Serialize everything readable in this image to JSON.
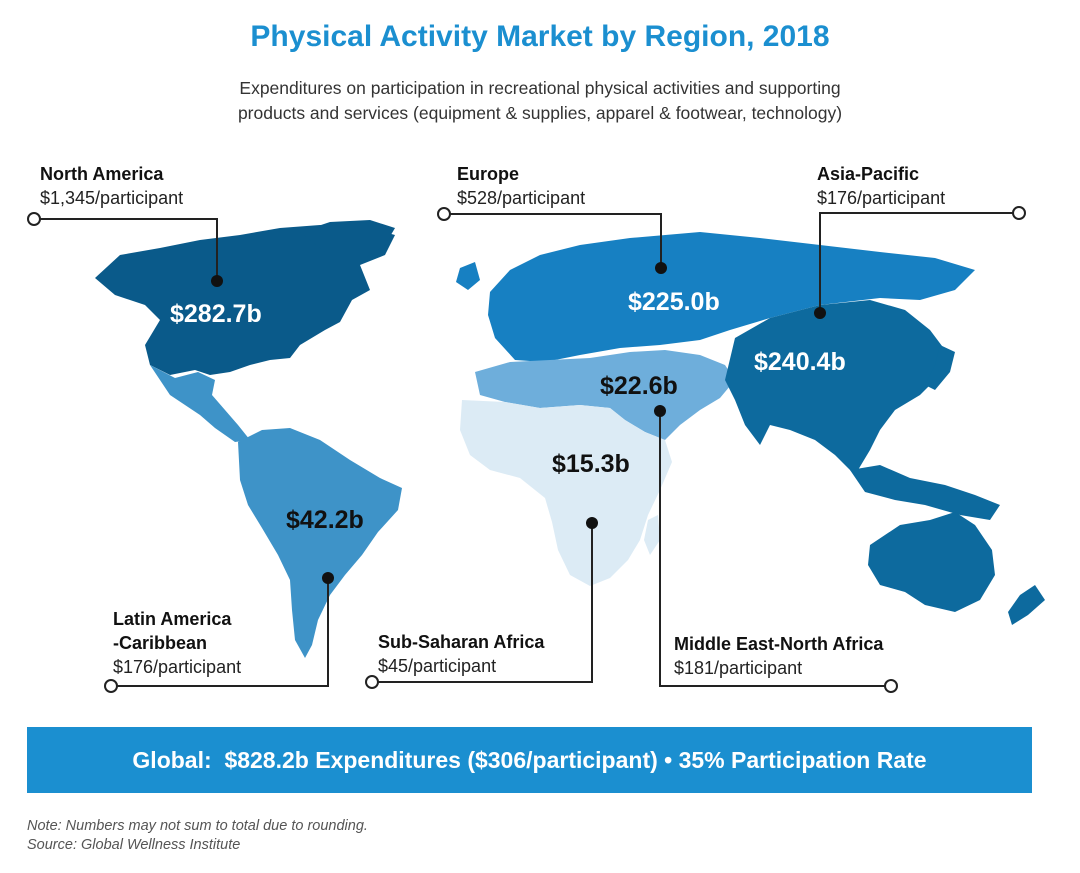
{
  "title": "Physical Activity Market by Region, 2018",
  "subtitle_line1": "Expenditures on participation in recreational physical activities and supporting",
  "subtitle_line2": "products and services (equipment & supplies, apparel & footwear, technology)",
  "regions": [
    {
      "name": "North America",
      "per_participant": "$1,345/participant",
      "market": "$282.7b",
      "color": "#0a5a8a"
    },
    {
      "name": "Europe",
      "per_participant": "$528/participant",
      "market": "$225.0b",
      "color": "#1780c2"
    },
    {
      "name": "Asia-Pacific",
      "per_participant": "$176/participant",
      "market": "$240.4b",
      "color": "#0d6a9e"
    },
    {
      "name_line1": "Latin America",
      "name_line2": "-Caribbean",
      "per_participant": "$176/participant",
      "market": "$42.2b",
      "color": "#3e93c8"
    },
    {
      "name": "Sub-Saharan Africa",
      "per_participant": "$45/participant",
      "market": "$15.3b",
      "color": "#dcebf5"
    },
    {
      "name": "Middle East-North Africa",
      "per_participant": "$181/participant",
      "market": "$22.6b",
      "color": "#6eaedb"
    }
  ],
  "global_banner": {
    "label": "Global:",
    "text": "$828.2b Expenditures ($306/participant) • 35% Participation Rate"
  },
  "notes": {
    "note": "Note: Numbers may not sum to total due to rounding.",
    "source": "Source: Global Wellness Institute"
  }
}
